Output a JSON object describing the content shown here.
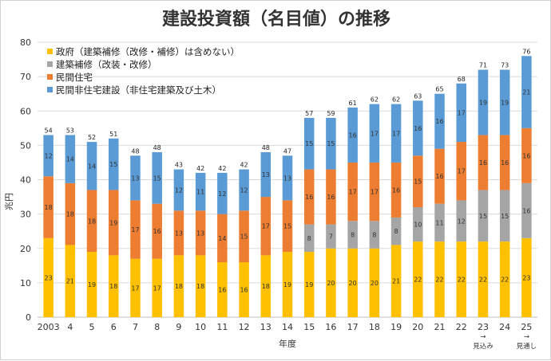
{
  "chart_data": {
    "type": "bar",
    "stacked": true,
    "title": "建設投資額（名目値）の推移",
    "xlabel": "年度",
    "ylabel": "兆円",
    "ylim": [
      0,
      80
    ],
    "yticks": [
      0,
      10,
      20,
      30,
      40,
      50,
      60,
      70,
      80
    ],
    "grid": true,
    "legend_position": "top-left",
    "categories": [
      "2003",
      "4",
      "5",
      "6",
      "7",
      "8",
      "9",
      "10",
      "11",
      "12",
      "13",
      "14",
      "15",
      "16",
      "17",
      "18",
      "19",
      "20",
      "21",
      "22",
      "23",
      "24",
      "25"
    ],
    "category_notes": [
      {
        "category": "23",
        "arrow": "→",
        "text": "見込み"
      },
      {
        "category": "25",
        "arrow": "→",
        "text": "見通し"
      }
    ],
    "series": [
      {
        "name": "政府（建築補修（改修・補修）は含めない）",
        "color": "#FFC000",
        "values": [
          23,
          21,
          19,
          18,
          17,
          17,
          18,
          18,
          16,
          16,
          18,
          19,
          19,
          20,
          20,
          20,
          21,
          22,
          22,
          22,
          22,
          22,
          23
        ]
      },
      {
        "name": "建築補修（改装・改修）",
        "color": "#A5A5A5",
        "values": [
          null,
          null,
          null,
          null,
          null,
          null,
          null,
          null,
          null,
          null,
          null,
          null,
          8,
          7,
          8,
          8,
          8,
          10,
          11,
          12,
          15,
          15,
          16
        ]
      },
      {
        "name": "民間住宅",
        "color": "#ED7D31",
        "values": [
          18,
          18,
          18,
          19,
          17,
          16,
          13,
          13,
          14,
          15,
          17,
          15,
          16,
          16,
          17,
          17,
          16,
          15,
          16,
          17,
          16,
          16,
          16
        ]
      },
      {
        "name": "民間非住宅建設（非住宅建築及び土木）",
        "color": "#5B9BD5",
        "values": [
          12,
          14,
          14,
          15,
          13,
          15,
          12,
          11,
          12,
          12,
          13,
          13,
          15,
          15,
          16,
          17,
          17,
          16,
          16,
          17,
          19,
          19,
          21
        ]
      }
    ],
    "totals": [
      54,
      53,
      52,
      51,
      48,
      48,
      43,
      42,
      42,
      42,
      48,
      47,
      57,
      59,
      61,
      62,
      62,
      63,
      65,
      68,
      71,
      73,
      76
    ]
  }
}
